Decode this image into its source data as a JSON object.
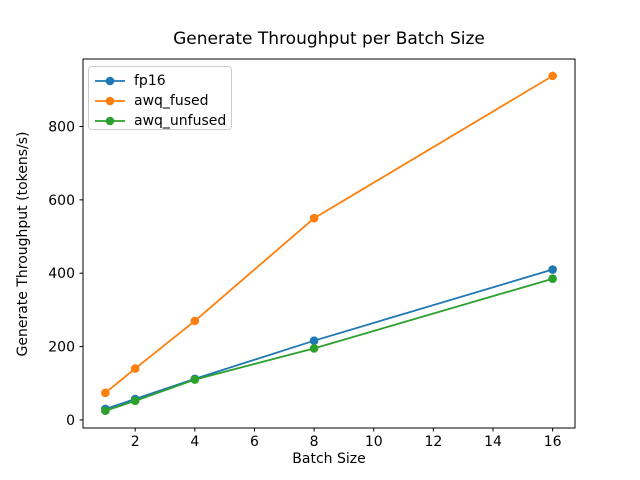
{
  "figure": {
    "background": "#ffffff",
    "spine_color": "#000000"
  },
  "chart_data": {
    "type": "line",
    "title": "Generate Throughput per Batch Size",
    "xlabel": "Batch Size",
    "ylabel": "Generate Throughput (tokens/s)",
    "x": [
      1,
      2,
      4,
      8,
      16
    ],
    "series": [
      {
        "name": "fp16",
        "color": "#1f77b4",
        "values": [
          30,
          57,
          112,
          216,
          410
        ]
      },
      {
        "name": "awq_fused",
        "color": "#ff7f0e",
        "values": [
          74,
          140,
          270,
          550,
          938
        ]
      },
      {
        "name": "awq_unfused",
        "color": "#2ca02c",
        "values": [
          25,
          52,
          110,
          195,
          385
        ]
      }
    ],
    "marker": "o",
    "grid": false,
    "legend_position": "upper left",
    "xticks": [
      2,
      4,
      6,
      8,
      10,
      12,
      14,
      16
    ],
    "yticks": [
      0,
      200,
      400,
      600,
      800
    ],
    "xlim": [
      0.25,
      16.75
    ],
    "ylim": [
      -22,
      984
    ]
  }
}
